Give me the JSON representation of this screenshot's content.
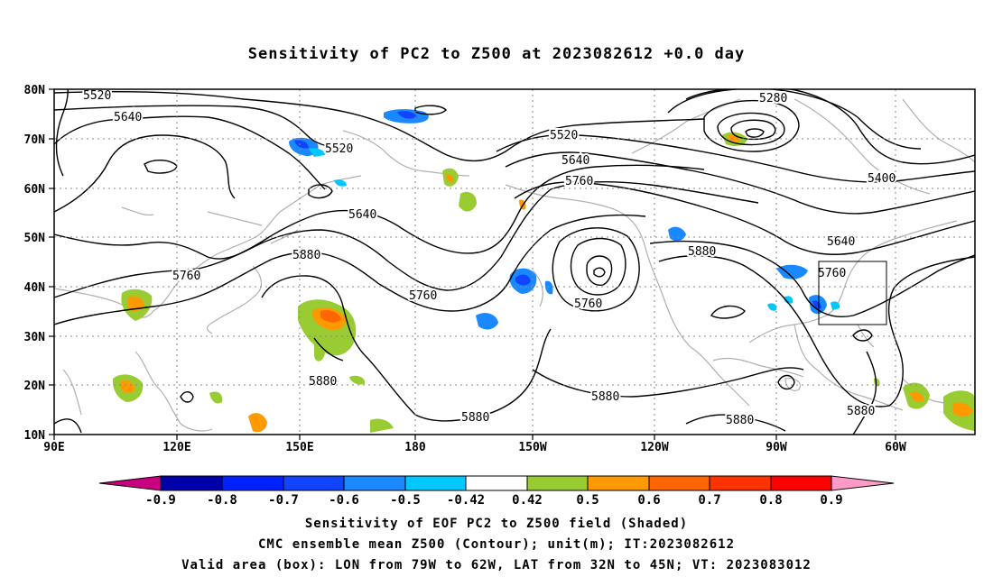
{
  "title": "Sensitivity of PC2 to Z500 at 2023082612 +0.0 day",
  "map": {
    "lat_labels": [
      "80N",
      "70N",
      "60N",
      "50N",
      "40N",
      "30N",
      "20N",
      "10N"
    ],
    "lon_labels": [
      "90E",
      "120E",
      "150E",
      "180",
      "150W",
      "120W",
      "90W",
      "60W"
    ],
    "contour_labels": [
      "5520",
      "5640",
      "5520",
      "5640",
      "5880",
      "5760",
      "5760",
      "5520",
      "5640",
      "5760",
      "5760",
      "5880",
      "5280",
      "5400",
      "5640",
      "5760",
      "5880",
      "5880",
      "5880",
      "5880",
      "5880"
    ]
  },
  "colorbar": {
    "labels": [
      "-0.9",
      "-0.8",
      "-0.7",
      "-0.6",
      "-0.5",
      "-0.42",
      "0.42",
      "0.5",
      "0.6",
      "0.7",
      "0.8",
      "0.9"
    ],
    "colors": [
      "#c8007f",
      "#0000aa",
      "#0022ff",
      "#1144ff",
      "#1a88ff",
      "#00c8ff",
      "#ffffff",
      "#99cc33",
      "#ff9900",
      "#ff6600",
      "#ff3300",
      "#ff0000",
      "#ff99c8"
    ]
  },
  "captions": {
    "line1": "Sensitivity of EOF PC2 to Z500 field (Shaded)",
    "line2": "CMC ensemble mean Z500 (Contour); unit(m); IT:2023082612",
    "line3": "Valid area (box): LON from 79W to 62W, LAT from 32N to 45N; VT: 2023083012"
  }
}
